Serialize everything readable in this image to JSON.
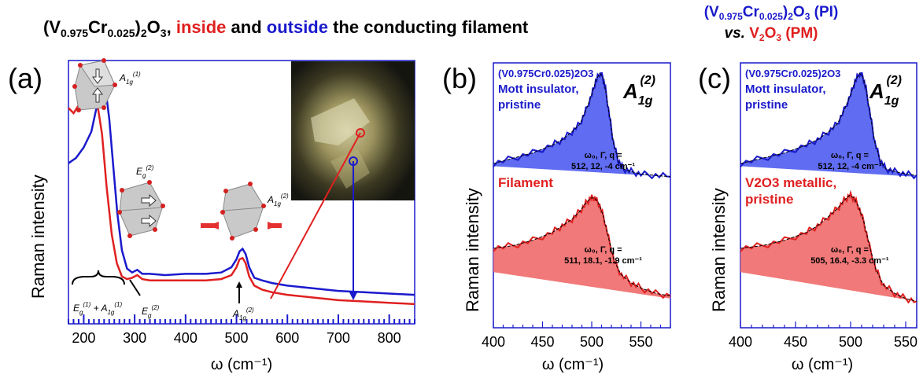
{
  "header": {
    "title_parts": [
      {
        "text": "(V",
        "color": "#000000"
      },
      {
        "text": "0.975",
        "color": "#000000",
        "sub": true
      },
      {
        "text": "Cr",
        "color": "#000000"
      },
      {
        "text": "0.025",
        "color": "#000000",
        "sub": true
      },
      {
        "text": ")",
        "color": "#000000"
      },
      {
        "text": "2",
        "color": "#000000",
        "sub": true
      },
      {
        "text": "O",
        "color": "#000000"
      },
      {
        "text": "3",
        "color": "#000000",
        "sub": true
      },
      {
        "text": ", ",
        "color": "#000000"
      },
      {
        "text": "inside",
        "color": "#e02020"
      },
      {
        "text": " and ",
        "color": "#000000"
      },
      {
        "text": "outside",
        "color": "#1a1acc"
      },
      {
        "text": " the conducting filament",
        "color": "#000000"
      }
    ],
    "right_line1": "(V0.975Cr0.025)2O3 (PI)",
    "right_vs": "vs.",
    "right_v2o3": "V2O3 (PM)"
  },
  "colors": {
    "blue": "#1a1acc",
    "red": "#e02020",
    "black": "#000000"
  },
  "chart_data": [
    {
      "panel": "(a)",
      "type": "line",
      "xlabel": "ω (cm⁻¹)",
      "ylabel": "Raman intensity",
      "xlim": [
        170,
        850
      ],
      "xticks": [
        200,
        300,
        400,
        500,
        600,
        700,
        800
      ],
      "legend": "none",
      "series": [
        {
          "name": "outside",
          "color": "#1a1acc",
          "x": [
            170,
            185,
            200,
            215,
            225,
            232,
            238,
            243,
            250,
            258,
            266,
            275,
            285,
            295,
            305,
            315,
            330,
            360,
            400,
            440,
            470,
            490,
            500,
            506,
            512,
            518,
            525,
            535,
            550,
            570,
            600,
            650,
            700,
            750,
            800,
            850
          ],
          "y": [
            0.61,
            0.63,
            0.67,
            0.73,
            0.82,
            0.9,
            0.93,
            0.89,
            0.78,
            0.6,
            0.42,
            0.28,
            0.21,
            0.195,
            0.205,
            0.19,
            0.19,
            0.185,
            0.19,
            0.19,
            0.195,
            0.215,
            0.245,
            0.275,
            0.285,
            0.265,
            0.215,
            0.175,
            0.165,
            0.155,
            0.145,
            0.135,
            0.125,
            0.12,
            0.115,
            0.11
          ]
        },
        {
          "name": "inside",
          "color": "#e02020",
          "x": [
            170,
            180,
            190,
            200,
            207,
            213,
            220,
            228,
            236,
            245,
            255,
            265,
            275,
            285,
            295,
            305,
            315,
            330,
            360,
            400,
            440,
            470,
            490,
            500,
            506,
            512,
            518,
            525,
            535,
            550,
            570,
            600,
            650,
            700,
            750,
            800,
            850
          ],
          "y": [
            0.82,
            0.8,
            0.83,
            0.87,
            0.89,
            0.88,
            0.86,
            0.82,
            0.72,
            0.52,
            0.34,
            0.23,
            0.18,
            0.17,
            0.175,
            0.185,
            0.17,
            0.165,
            0.165,
            0.165,
            0.165,
            0.17,
            0.185,
            0.215,
            0.245,
            0.25,
            0.23,
            0.18,
            0.145,
            0.13,
            0.12,
            0.11,
            0.1,
            0.09,
            0.085,
            0.08,
            0.075
          ]
        }
      ],
      "annotations": [
        "E_g^(1) + A_1g^(1)",
        "E_g^(2)",
        "A_1g^(2)",
        "A_1g^(1)",
        "E_g^(2)",
        "A_1g^(2)"
      ]
    },
    {
      "panel": "(b)",
      "type": "area",
      "xlabel": "ω (cm⁻¹)",
      "ylabel": "Raman intensity",
      "xlim": [
        400,
        580
      ],
      "xticks": [
        400,
        450,
        500,
        550
      ],
      "big_label": "A_1g^(2)",
      "series": [
        {
          "name": "(V0.975Cr0.025)2O3 Mott insulator, pristine",
          "color": "#1a1acc",
          "label_lines": [
            "(V0.975Cr0.025)2O3",
            "Mott insulator,",
            "pristine"
          ],
          "fit_label": [
            "ω₀, Γ, q =",
            "512, 12, -4 cm⁻¹"
          ],
          "x": [
            400,
            420,
            440,
            460,
            470,
            480,
            488,
            494,
            500,
            504,
            508,
            511,
            514,
            518,
            522,
            527,
            532,
            540,
            550,
            565,
            580
          ],
          "y": [
            0.62,
            0.64,
            0.66,
            0.69,
            0.71,
            0.74,
            0.77,
            0.82,
            0.88,
            0.93,
            0.96,
            0.95,
            0.9,
            0.8,
            0.7,
            0.63,
            0.6,
            0.59,
            0.58,
            0.575,
            0.57
          ],
          "baseline": [
            0.61,
            0.57
          ]
        },
        {
          "name": "Filament",
          "color": "#e02020",
          "label_lines": [
            "Filament"
          ],
          "fit_label": [
            "ω₀, Γ, q =",
            "511, 18.1, -1.9 cm⁻¹"
          ],
          "x": [
            400,
            420,
            440,
            460,
            470,
            480,
            488,
            494,
            499,
            503,
            507,
            512,
            517,
            523,
            530,
            540,
            550,
            565,
            580
          ],
          "y": [
            0.3,
            0.31,
            0.33,
            0.36,
            0.385,
            0.41,
            0.44,
            0.47,
            0.49,
            0.49,
            0.47,
            0.42,
            0.34,
            0.25,
            0.2,
            0.17,
            0.15,
            0.13,
            0.12
          ],
          "baseline": [
            0.21,
            0.11
          ]
        }
      ]
    },
    {
      "panel": "(c)",
      "type": "area",
      "xlabel": "ω (cm⁻¹)",
      "ylabel": "Raman intensity",
      "xlim": [
        400,
        560
      ],
      "xticks": [
        400,
        450,
        500,
        550
      ],
      "big_label": "A_1g^(2)",
      "series": [
        {
          "name": "(V0.975Cr0.025)2O3 Mott insulator, pristine",
          "color": "#1a1acc",
          "label_lines": [
            "(V0.975Cr0.025)2O3",
            "Mott insulator,",
            "pristine"
          ],
          "fit_label": [
            "ω₀, Γ, q =",
            "512, 12, -4 cm⁻¹"
          ],
          "x": [
            400,
            420,
            440,
            460,
            470,
            480,
            488,
            494,
            500,
            504,
            508,
            511,
            514,
            518,
            522,
            527,
            532,
            540,
            550,
            560
          ],
          "y": [
            0.62,
            0.64,
            0.66,
            0.69,
            0.71,
            0.74,
            0.77,
            0.82,
            0.88,
            0.93,
            0.96,
            0.95,
            0.9,
            0.8,
            0.7,
            0.63,
            0.6,
            0.59,
            0.58,
            0.575
          ],
          "baseline": [
            0.61,
            0.57
          ]
        },
        {
          "name": "V2O3 metallic, pristine",
          "color": "#e02020",
          "label_lines": [
            "V2O3 metallic,",
            "pristine"
          ],
          "fit_label": [
            "ω₀, Γ, q =",
            "505, 16.4, -3.3 cm⁻¹"
          ],
          "x": [
            400,
            420,
            440,
            460,
            470,
            480,
            488,
            494,
            499,
            503,
            507,
            512,
            517,
            523,
            530,
            540,
            550,
            560
          ],
          "y": [
            0.3,
            0.31,
            0.33,
            0.36,
            0.385,
            0.42,
            0.45,
            0.48,
            0.5,
            0.49,
            0.46,
            0.4,
            0.31,
            0.22,
            0.16,
            0.13,
            0.11,
            0.1
          ],
          "baseline": [
            0.21,
            0.1
          ]
        }
      ]
    }
  ]
}
